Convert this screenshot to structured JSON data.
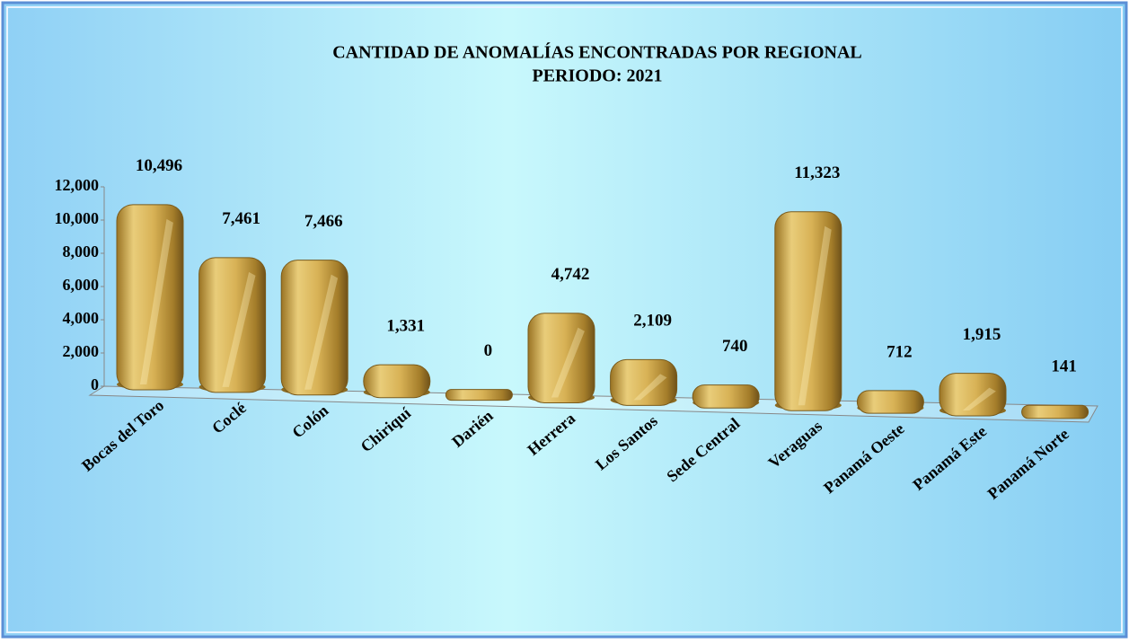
{
  "chart_data": {
    "type": "bar",
    "title": "CANTIDAD DE ANOMALÍAS ENCONTRADAS POR REGIONAL",
    "subtitle": "PERIODO: 2021",
    "categories": [
      "Bocas del Toro",
      "Coclé",
      "Colón",
      "Chiriquí",
      "Darién",
      "Herrera",
      "Los Santos",
      "Sede Central",
      "Veraguas",
      "Panamá Oeste",
      "Panamá Este",
      "Panamá Norte"
    ],
    "values": [
      10496,
      7461,
      7466,
      1331,
      0,
      4742,
      2109,
      740,
      11323,
      712,
      1915,
      141
    ],
    "value_labels": [
      "10,496",
      "7,461",
      "7,466",
      "1,331",
      "0",
      "4,742",
      "2,109",
      "740",
      "11,323",
      "712",
      "1,915",
      "141"
    ],
    "color": "#c9a23e",
    "ylim": [
      0,
      12000
    ],
    "yticks": [
      0,
      {
        "value": 2000,
        "label": "2,000"
      },
      {
        "value": 4000,
        "label": "4,000"
      },
      {
        "value": 6000,
        "label": "6,000"
      },
      {
        "value": 8000,
        "label": "8,000"
      },
      {
        "value": 10000,
        "label": "10,000"
      },
      {
        "value": 12000,
        "label": "12,000"
      }
    ],
    "grid": false
  }
}
